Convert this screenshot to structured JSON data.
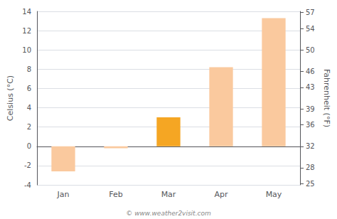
{
  "chart_data": {
    "type": "bar",
    "categories": [
      "Jan",
      "Feb",
      "Mar",
      "Apr",
      "May"
    ],
    "values": [
      -2.6,
      -0.2,
      3.0,
      8.2,
      13.3
    ],
    "colors": [
      "#fac99e",
      "#fac99e",
      "#f5a623",
      "#fac99e",
      "#fac99e"
    ],
    "ylabel": "Celsius (°C)",
    "ylim": [
      -4,
      14
    ],
    "yticks": [
      -4,
      -2,
      0,
      2,
      4,
      6,
      8,
      10,
      12,
      14
    ],
    "y2label": "Fahrenheit (°F)",
    "y2lim": [
      24.8,
      57.2
    ],
    "y2ticks": [
      25,
      28,
      32,
      36,
      39,
      43,
      46,
      50,
      54,
      57
    ],
    "grid": true,
    "annotations": [
      "© www.weather2visit.com"
    ]
  }
}
